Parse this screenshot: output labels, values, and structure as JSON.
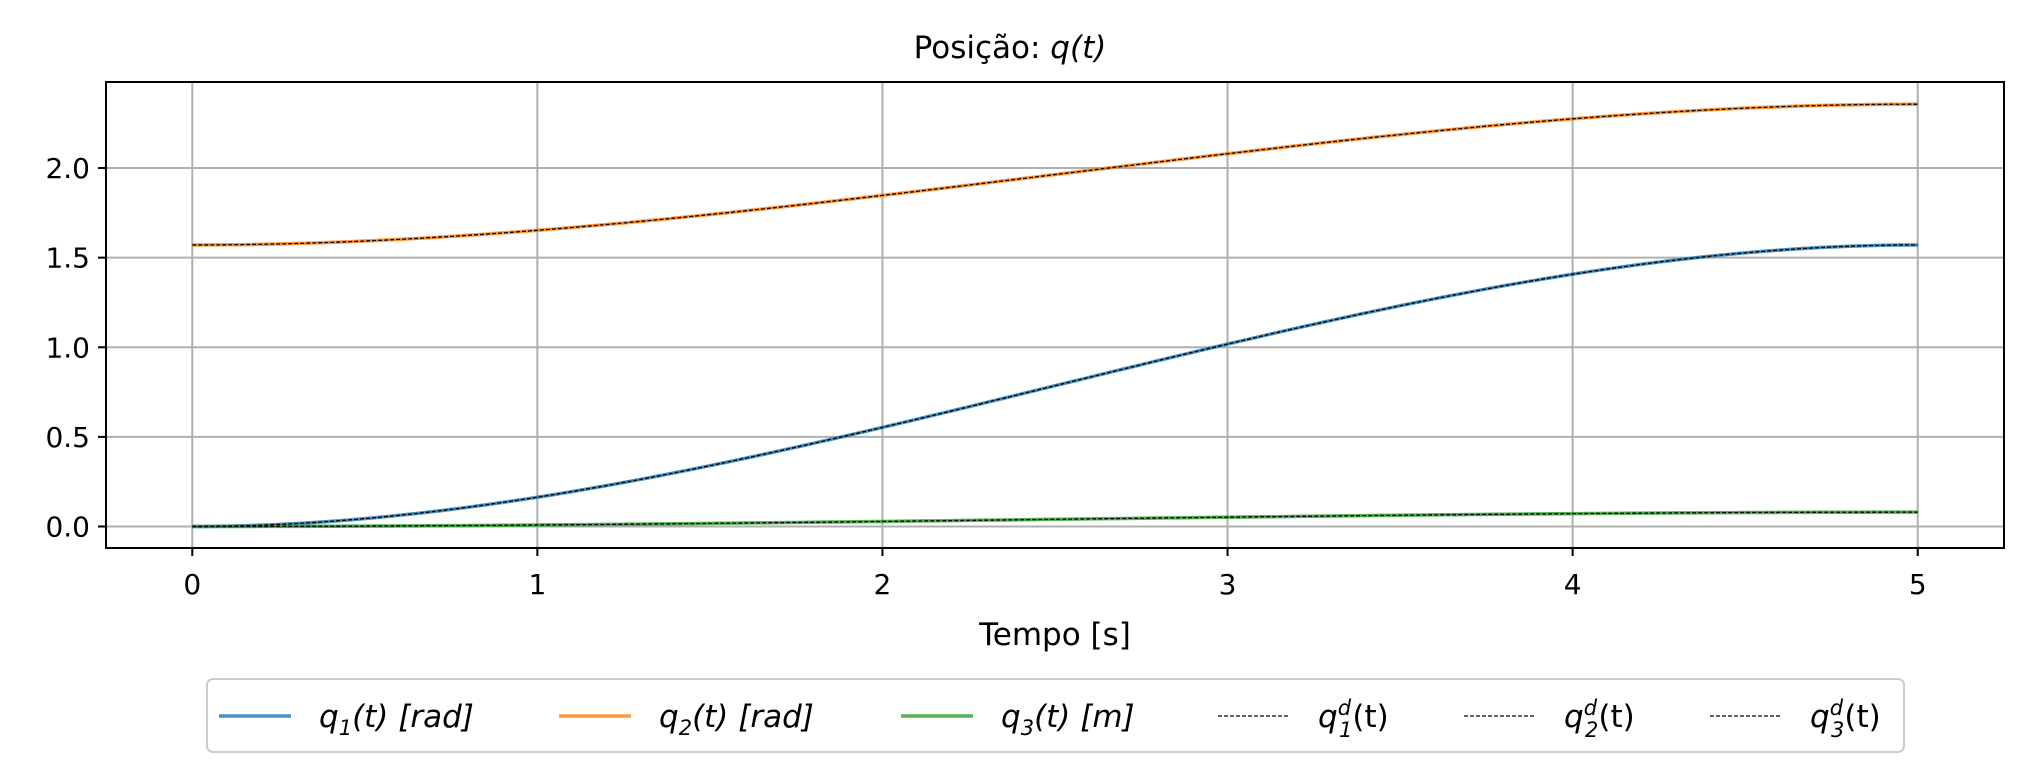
{
  "chart_data": {
    "type": "line",
    "title": "Posição:",
    "title_math": "q(t)",
    "xlabel": "Tempo [s]",
    "ylabel": "",
    "xlim": [
      -0.25,
      5.25
    ],
    "ylim": [
      -0.12,
      2.48
    ],
    "xticks": [
      0,
      1,
      2,
      3,
      4,
      5
    ],
    "xtick_labels": [
      "0",
      "1",
      "2",
      "3",
      "4",
      "5"
    ],
    "yticks": [
      0.0,
      0.5,
      1.0,
      1.5,
      2.0
    ],
    "ytick_labels": [
      "0.0",
      "0.5",
      "1.0",
      "1.5",
      "2.0"
    ],
    "grid": true,
    "legend_position": "bottom-center, below axes",
    "series": [
      {
        "name": "q_1(t) [rad]",
        "legend": {
          "base": "q",
          "sub": "1",
          "sup": "",
          "tail": "(t) [rad]"
        },
        "color": "#1f77b4",
        "style": "solid",
        "start": 0.0,
        "end": 1.5708,
        "x_end": 5
      },
      {
        "name": "q_2(t) [rad]",
        "legend": {
          "base": "q",
          "sub": "2",
          "sup": "",
          "tail": "(t) [rad]"
        },
        "color": "#ff7f0e",
        "style": "solid",
        "start": 1.5708,
        "end": 2.3562,
        "x_end": 5
      },
      {
        "name": "q_3(t) [m]",
        "legend": {
          "base": "q",
          "sub": "3",
          "sup": "",
          "tail": "(t) [m]"
        },
        "color": "#2ca02c",
        "style": "solid",
        "start": 0.0,
        "end": 0.08,
        "x_end": 5
      },
      {
        "name": "q_1^d(t)",
        "legend": {
          "base": "q",
          "sub": "1",
          "sup": "d",
          "tail": "(t)"
        },
        "color": "#000000",
        "style": "dashed",
        "start": 0.0,
        "end": 1.5708,
        "x_end": 5
      },
      {
        "name": "q_2^d(t)",
        "legend": {
          "base": "q",
          "sub": "2",
          "sup": "d",
          "tail": "(t)"
        },
        "color": "#000000",
        "style": "dashed",
        "start": 1.5708,
        "end": 2.3562,
        "x_end": 5
      },
      {
        "name": "q_3^d(t)",
        "legend": {
          "base": "q",
          "sub": "3",
          "sup": "d",
          "tail": "(t)"
        },
        "color": "#000000",
        "style": "dashed",
        "start": 0.0,
        "end": 0.08,
        "x_end": 5
      }
    ]
  }
}
